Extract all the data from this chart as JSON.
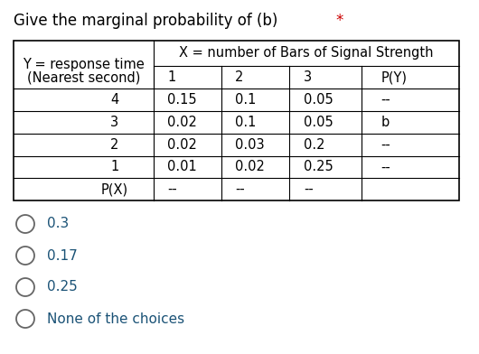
{
  "title_main": "Give the marginal probability of (b) ",
  "title_asterisk": "*",
  "title_color": "#000000",
  "asterisk_color": "#cc0000",
  "choice_text_color": "#1a5276",
  "circle_color": "#666666",
  "header_row1_col0": "Y = response time",
  "header_row1_col1": "X = number of Bars of Signal Strength",
  "header_row2": [
    "(Nearest second)",
    "1",
    "2",
    "3",
    "P(Y)"
  ],
  "rows": [
    [
      "4",
      "0.15",
      "0.1",
      "0.05",
      "--"
    ],
    [
      "3",
      "0.02",
      "0.1",
      "0.05",
      "b"
    ],
    [
      "2",
      "0.02",
      "0.03",
      "0.2",
      "--"
    ],
    [
      "1",
      "0.01",
      "0.02",
      "0.25",
      "--"
    ],
    [
      "P(X)",
      "--",
      "--",
      "--",
      ""
    ]
  ],
  "choices": [
    "0.3",
    "0.17",
    "0.25",
    "None of the choices"
  ],
  "bg_color": "#ffffff",
  "font_size_title": 12,
  "font_size_table": 10.5,
  "font_size_choices": 11
}
